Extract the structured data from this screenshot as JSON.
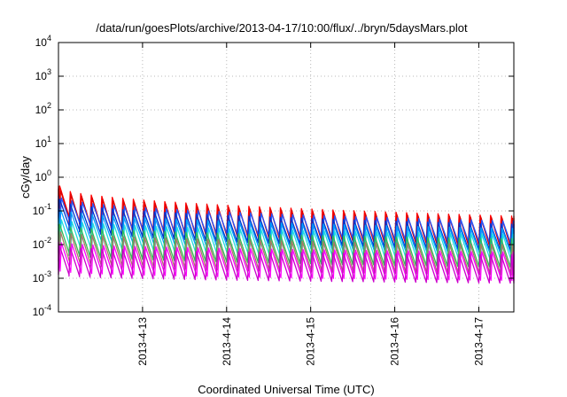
{
  "chart_data": {
    "type": "line",
    "title": "/data/run/goesPlots/archive/2013-04-17/10:00/flux/../bryn/5daysMars.plot",
    "xlabel": "Coordinated Universal Time (UTC)",
    "ylabel": "cGy/day",
    "yscale": "log",
    "ylim": [
      0.0001,
      10000
    ],
    "xlim_days": [
      "2013-04-12T00:00",
      "2013-04-17T10:00"
    ],
    "y_ticks": [
      {
        "base": "10",
        "exp": "-4"
      },
      {
        "base": "10",
        "exp": "-3"
      },
      {
        "base": "10",
        "exp": "-2"
      },
      {
        "base": "10",
        "exp": "-1"
      },
      {
        "base": "10",
        "exp": "0"
      },
      {
        "base": "10",
        "exp": "1"
      },
      {
        "base": "10",
        "exp": "2"
      },
      {
        "base": "10",
        "exp": "3"
      },
      {
        "base": "10",
        "exp": "4"
      }
    ],
    "x_ticks": [
      "2013-4-13",
      "2013-4-14",
      "2013-4-15",
      "2013-4-16",
      "2013-4-17"
    ],
    "grid": true,
    "legend": "none",
    "sawtooth_period_hours": 3,
    "series": [
      {
        "color": "#ff0000",
        "start_peak": 0.55,
        "end_peak": 0.07,
        "ratio": 8
      },
      {
        "color": "#dd0000",
        "start_peak": 0.45,
        "end_peak": 0.06,
        "ratio": 8
      },
      {
        "color": "#2255ff",
        "start_peak": 0.28,
        "end_peak": 0.05,
        "ratio": 6
      },
      {
        "color": "#0033cc",
        "start_peak": 0.22,
        "end_peak": 0.04,
        "ratio": 6
      },
      {
        "color": "#00a0ff",
        "start_peak": 0.12,
        "end_peak": 0.03,
        "ratio": 6
      },
      {
        "color": "#22dddd",
        "start_peak": 0.06,
        "end_peak": 0.02,
        "ratio": 7
      },
      {
        "color": "#33bb55",
        "start_peak": 0.04,
        "end_peak": 0.015,
        "ratio": 7
      },
      {
        "color": "#aa7766",
        "start_peak": 0.025,
        "end_peak": 0.01,
        "ratio": 8
      },
      {
        "color": "#ff00ff",
        "start_peak": 0.012,
        "end_peak": 0.006,
        "ratio": 7
      },
      {
        "color": "#cc00cc",
        "start_peak": 0.009,
        "end_peak": 0.005,
        "ratio": 7
      }
    ]
  }
}
